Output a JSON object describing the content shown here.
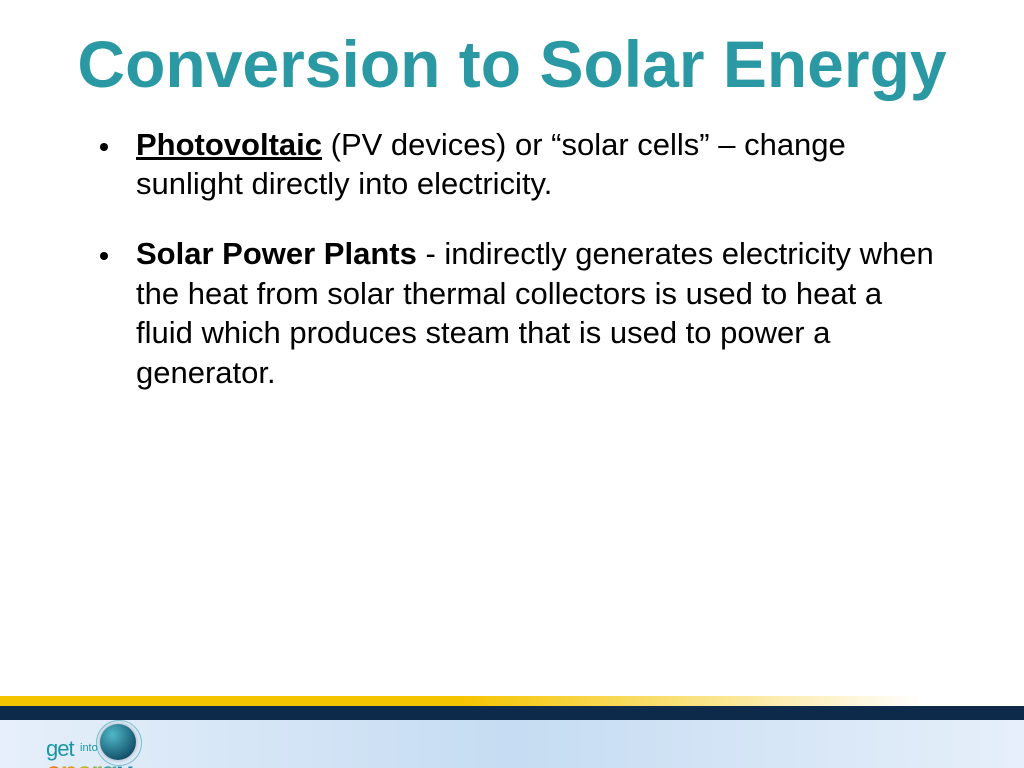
{
  "title": "Conversion to Solar Energy",
  "bullets": [
    {
      "lead_bold_underline": "Photovoltaic",
      "after_lead": " (PV devices) or “solar cells” – change sunlight directly into electricity."
    },
    {
      "lead_bold": "Solar Power Plants",
      "after_lead": " - indirectly generates electricity when the heat from solar thermal collectors is used to heat a fluid which produces steam that is used to power a generator."
    }
  ],
  "title_color": "#2a99a3",
  "body_text_color": "#000000",
  "title_fontsize": 66,
  "body_fontsize": 31,
  "footer_colors": {
    "yellow": "#f5c400",
    "navy": "#0e2a4a",
    "light_gradient_from": "#e6effa",
    "light_gradient_mid": "#c5dcf2"
  },
  "logo": {
    "text_get": "get",
    "text_into": "into",
    "text_energy": "energy",
    "teal": "#1a97a6",
    "gradient_letters": [
      "#e97f1e",
      "#d8a024",
      "#c0b62c",
      "#8fb84a",
      "#4aa6a0",
      "#2b88aa"
    ]
  }
}
